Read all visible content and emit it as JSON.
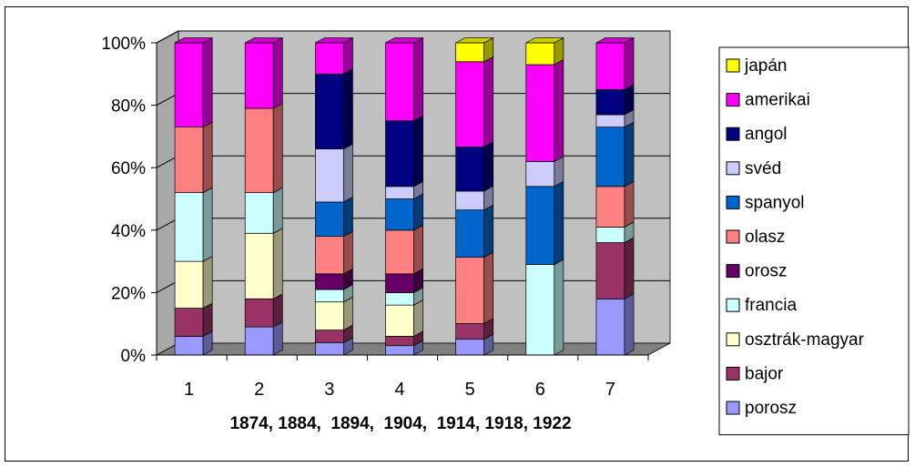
{
  "chart_data": {
    "type": "bar",
    "stacked": true,
    "percent": true,
    "view": "3d",
    "title": "",
    "xlabel": "1874, 1884,  1894,  1904,  1914, 1918, 1922",
    "ylabel": "",
    "ylim": [
      0,
      100
    ],
    "yticks": [
      "0%",
      "20%",
      "40%",
      "60%",
      "80%",
      "100%"
    ],
    "grid": true,
    "legend_position": "right",
    "categories": [
      "1",
      "2",
      "3",
      "4",
      "5",
      "6",
      "7"
    ],
    "series": [
      {
        "name": "porosz",
        "color": "#9999ff",
        "values": [
          6,
          9,
          4,
          3,
          5,
          0,
          18
        ]
      },
      {
        "name": "bajor",
        "color": "#993366",
        "values": [
          9,
          9,
          4,
          3,
          5,
          0,
          18
        ]
      },
      {
        "name": "osztrák-magyar",
        "color": "#ffffcc",
        "values": [
          15,
          21,
          9,
          10,
          0,
          0,
          0
        ]
      },
      {
        "name": "francia",
        "color": "#ccffff",
        "values": [
          22,
          13,
          4,
          4,
          0,
          29,
          5
        ]
      },
      {
        "name": "orosz",
        "color": "#660066",
        "values": [
          0,
          0,
          5,
          6,
          0,
          0,
          0
        ]
      },
      {
        "name": "olasz",
        "color": "#ff8080",
        "values": [
          21,
          27,
          12,
          14,
          21,
          0,
          13
        ]
      },
      {
        "name": "spanyol",
        "color": "#0066cc",
        "values": [
          0,
          0,
          11,
          10,
          15,
          25,
          19
        ]
      },
      {
        "name": "svéd",
        "color": "#ccccff",
        "values": [
          0,
          0,
          17,
          4,
          6,
          8,
          4
        ]
      },
      {
        "name": "angol",
        "color": "#000080",
        "values": [
          0,
          0,
          24,
          21,
          14,
          0,
          8
        ]
      },
      {
        "name": "amerikai",
        "color": "#ff00ff",
        "values": [
          27,
          21,
          10,
          25,
          27,
          31,
          15
        ]
      },
      {
        "name": "japán",
        "color": "#ffff00",
        "values": [
          0,
          0,
          0,
          0,
          6,
          7,
          0
        ]
      }
    ],
    "legend_order": [
      "japán",
      "amerikai",
      "angol",
      "svéd",
      "spanyol",
      "olasz",
      "orosz",
      "francia",
      "osztrák-magyar",
      "bajor",
      "porosz"
    ],
    "wall_color": "#c0c0c0",
    "floor_color": "#808080"
  }
}
